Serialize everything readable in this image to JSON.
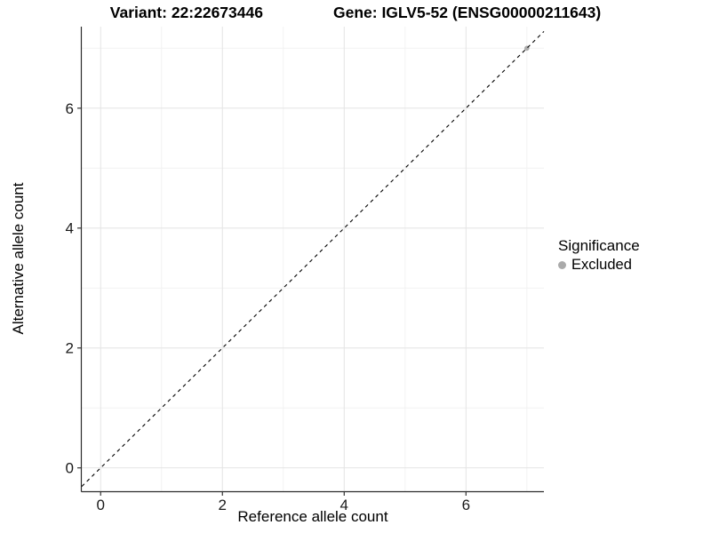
{
  "title": {
    "variant": "Variant: 22:22673446",
    "gene": "Gene: IGLV5-52 (ENSG00000211643)"
  },
  "axes": {
    "x_label": "Reference allele count",
    "y_label": "Alternative allele count",
    "x_tick_labels": [
      "0",
      "2",
      "4",
      "6"
    ],
    "y_tick_labels": [
      "0",
      "2",
      "4",
      "6"
    ]
  },
  "legend": {
    "title": "Significance",
    "items": [
      {
        "label": "Excluded",
        "color": "#aaaaaa"
      }
    ]
  },
  "colors": {
    "background": "#ffffff",
    "grid_major": "#e4e4e4",
    "grid_minor": "#f2f2f2",
    "axis_line": "#2b2b2b",
    "tick": "#333333",
    "tick_label": "#1a1a1a",
    "reference_line": "#000000",
    "point": "#aaaaaa"
  },
  "chart_data": {
    "type": "scatter",
    "title_left": "Variant: 22:22673446",
    "title_right": "Gene: IGLV5-52 (ENSG00000211643)",
    "xlabel": "Reference allele count",
    "ylabel": "Alternative allele count",
    "x_domain": [
      -0.31,
      7.28
    ],
    "y_domain": [
      -0.39,
      7.36
    ],
    "x_major_ticks": [
      0,
      2,
      4,
      6
    ],
    "y_major_ticks": [
      0,
      2,
      4,
      6
    ],
    "x_minor_ticks": [
      1,
      3,
      5,
      7
    ],
    "y_minor_ticks": [
      1,
      3,
      5,
      7
    ],
    "grid": "major and minor gridlines on white panel",
    "reference_line": {
      "type": "identity y=x",
      "style": "dashed",
      "color": "#000000"
    },
    "series": [
      {
        "name": "Excluded",
        "color": "#aaaaaa",
        "points": [
          [
            7,
            7
          ]
        ]
      }
    ],
    "legend_title": "Significance",
    "legend_position": "right"
  }
}
